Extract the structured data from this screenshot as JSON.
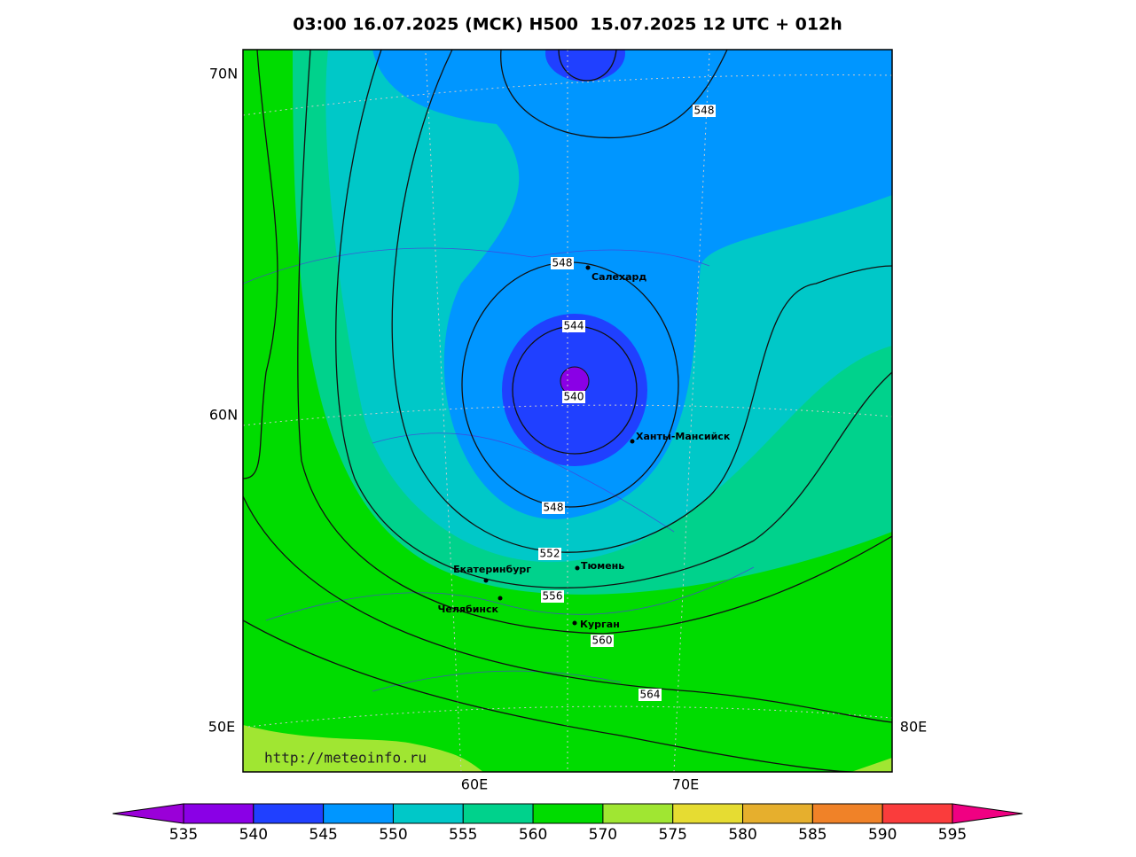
{
  "header": {
    "title": "03:00 16.07.2025 (МСК) H500  15.07.2025 12 UTC + 012h"
  },
  "axis_labels": {
    "lat": [
      "70N",
      "60N"
    ],
    "lon": [
      "50E",
      "60E",
      "70E",
      "80E"
    ]
  },
  "contour_labels": [
    "548",
    "548",
    "544",
    "540",
    "548",
    "552",
    "556",
    "560",
    "564"
  ],
  "cities": [
    "Салехард",
    "Ханты-Мансийск",
    "Екатеринбург",
    "Тюмень",
    "Челябинск",
    "Курган"
  ],
  "url": "http://meteoinfo.ru",
  "colorbar": {
    "labels": [
      535,
      540,
      545,
      550,
      555,
      560,
      570,
      575,
      580,
      585,
      590,
      595
    ],
    "colors": [
      "#9a00d8",
      "#8a00e6",
      "#2040ff",
      "#0096ff",
      "#00c8c8",
      "#00d28c",
      "#00dc00",
      "#a0e632",
      "#e6dc32",
      "#e6af2d",
      "#f08228",
      "#fa3c3c",
      "#f00082"
    ]
  }
}
